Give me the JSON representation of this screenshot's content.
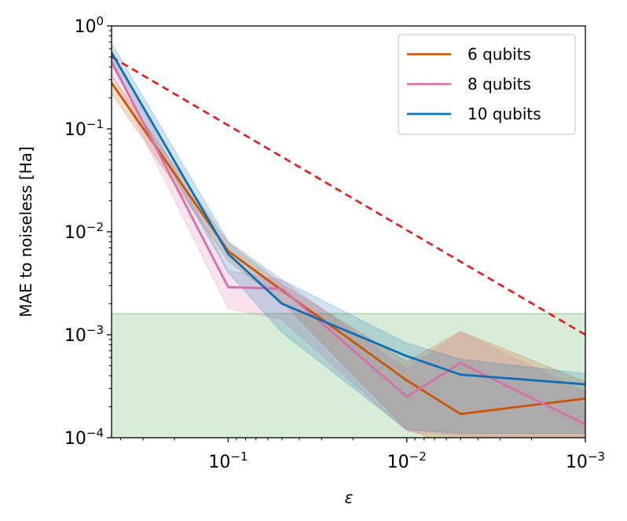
{
  "chart_data": {
    "type": "line",
    "xscale": "log-reversed",
    "yscale": "log",
    "x": [
      0.5,
      0.1,
      0.05,
      0.01,
      0.005,
      0.001
    ],
    "xlim": [
      0.45,
      0.001
    ],
    "ylim": [
      0.0001,
      1
    ],
    "xlabel": "ε",
    "ylabel": "MAE to noiseless [Ha]",
    "x_ticks": [
      {
        "value": 0.1,
        "base": "10",
        "exp": "−1"
      },
      {
        "value": 0.01,
        "base": "10",
        "exp": "−2"
      },
      {
        "value": 0.001,
        "base": "10",
        "exp": "−3"
      }
    ],
    "y_ticks": [
      {
        "value": 1,
        "base": "10",
        "exp": "0"
      },
      {
        "value": 0.1,
        "base": "10",
        "exp": "−1"
      },
      {
        "value": 0.01,
        "base": "10",
        "exp": "−2"
      },
      {
        "value": 0.001,
        "base": "10",
        "exp": "−3"
      },
      {
        "value": 0.0001,
        "base": "10",
        "exp": "−4"
      }
    ],
    "threshold_band": {
      "low": 0.0001,
      "high": 0.0016,
      "color": "#a9d6a9"
    },
    "reference_line": {
      "x": [
        0.45,
        0.001
      ],
      "y": [
        0.5,
        0.001
      ],
      "color": "#e8191b",
      "style": "dashed"
    },
    "series": [
      {
        "name": "6 qubits",
        "color": "#cc5500",
        "values": [
          0.28,
          0.0065,
          0.0027,
          0.00036,
          0.00017,
          0.00024
        ],
        "upper": [
          0.33,
          0.0078,
          0.0031,
          0.00055,
          0.00108,
          0.00035
        ],
        "lower": [
          0.22,
          0.0052,
          0.0021,
          0.00012,
          8e-05,
          8e-05
        ]
      },
      {
        "name": "8 qubits",
        "color": "#d670a9",
        "values": [
          0.45,
          0.0029,
          0.0028,
          0.00025,
          0.00053,
          0.000135
        ],
        "upper": [
          0.58,
          0.0042,
          0.0034,
          0.00046,
          0.00107,
          0.00028
        ],
        "lower": [
          0.35,
          0.0018,
          0.0014,
          0.000115,
          0.000105,
          8e-05
        ]
      },
      {
        "name": "10 qubits",
        "color": "#0e6fb4",
        "values": [
          0.55,
          0.0061,
          0.002,
          0.00062,
          0.00041,
          0.00033
        ],
        "upper": [
          0.68,
          0.0081,
          0.0034,
          0.00083,
          0.00058,
          0.00042
        ],
        "lower": [
          0.42,
          0.004,
          0.00105,
          0.00012,
          0.00011,
          0.00011
        ]
      }
    ]
  }
}
